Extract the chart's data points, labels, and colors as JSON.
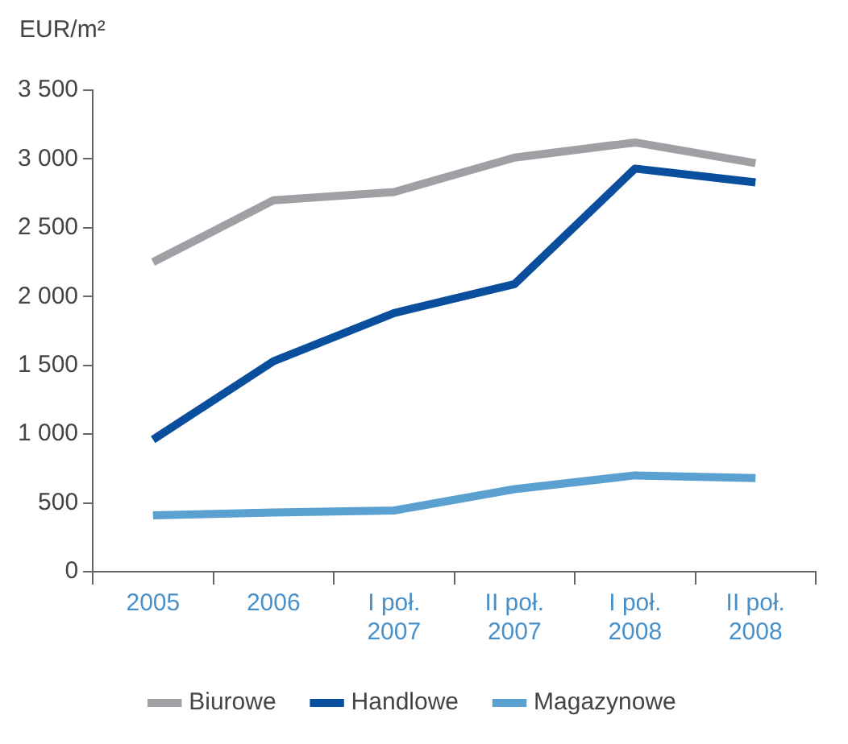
{
  "chart_data": {
    "type": "line",
    "ylabel": "EUR/m²",
    "categories": [
      "2005",
      "2006",
      "I poł.\n2007",
      "II poł.\n2007",
      "I poł.\n2008",
      "II poł.\n2008"
    ],
    "series": [
      {
        "name": "Biurowe",
        "color": "#a0a0a4",
        "values": [
          2250,
          2700,
          2760,
          3010,
          3120,
          2970
        ]
      },
      {
        "name": "Handlowe",
        "color": "#0a4f9e",
        "values": [
          960,
          1530,
          1880,
          2090,
          2930,
          2830
        ]
      },
      {
        "name": "Magazynowe",
        "color": "#5aa0d0",
        "values": [
          410,
          430,
          445,
          600,
          700,
          680
        ]
      }
    ],
    "ylim": [
      0,
      3500
    ],
    "yticks": [
      {
        "value": 0,
        "label": "0"
      },
      {
        "value": 500,
        "label": "500"
      },
      {
        "value": 1000,
        "label": "1 000"
      },
      {
        "value": 1500,
        "label": "1 500"
      },
      {
        "value": 2000,
        "label": "2 000"
      },
      {
        "value": 2500,
        "label": "2 500"
      },
      {
        "value": 3000,
        "label": "3 000"
      },
      {
        "value": 3500,
        "label": "3 500"
      }
    ],
    "grid": false,
    "legend": "bottom",
    "marker": "none",
    "line_style": "solid"
  }
}
